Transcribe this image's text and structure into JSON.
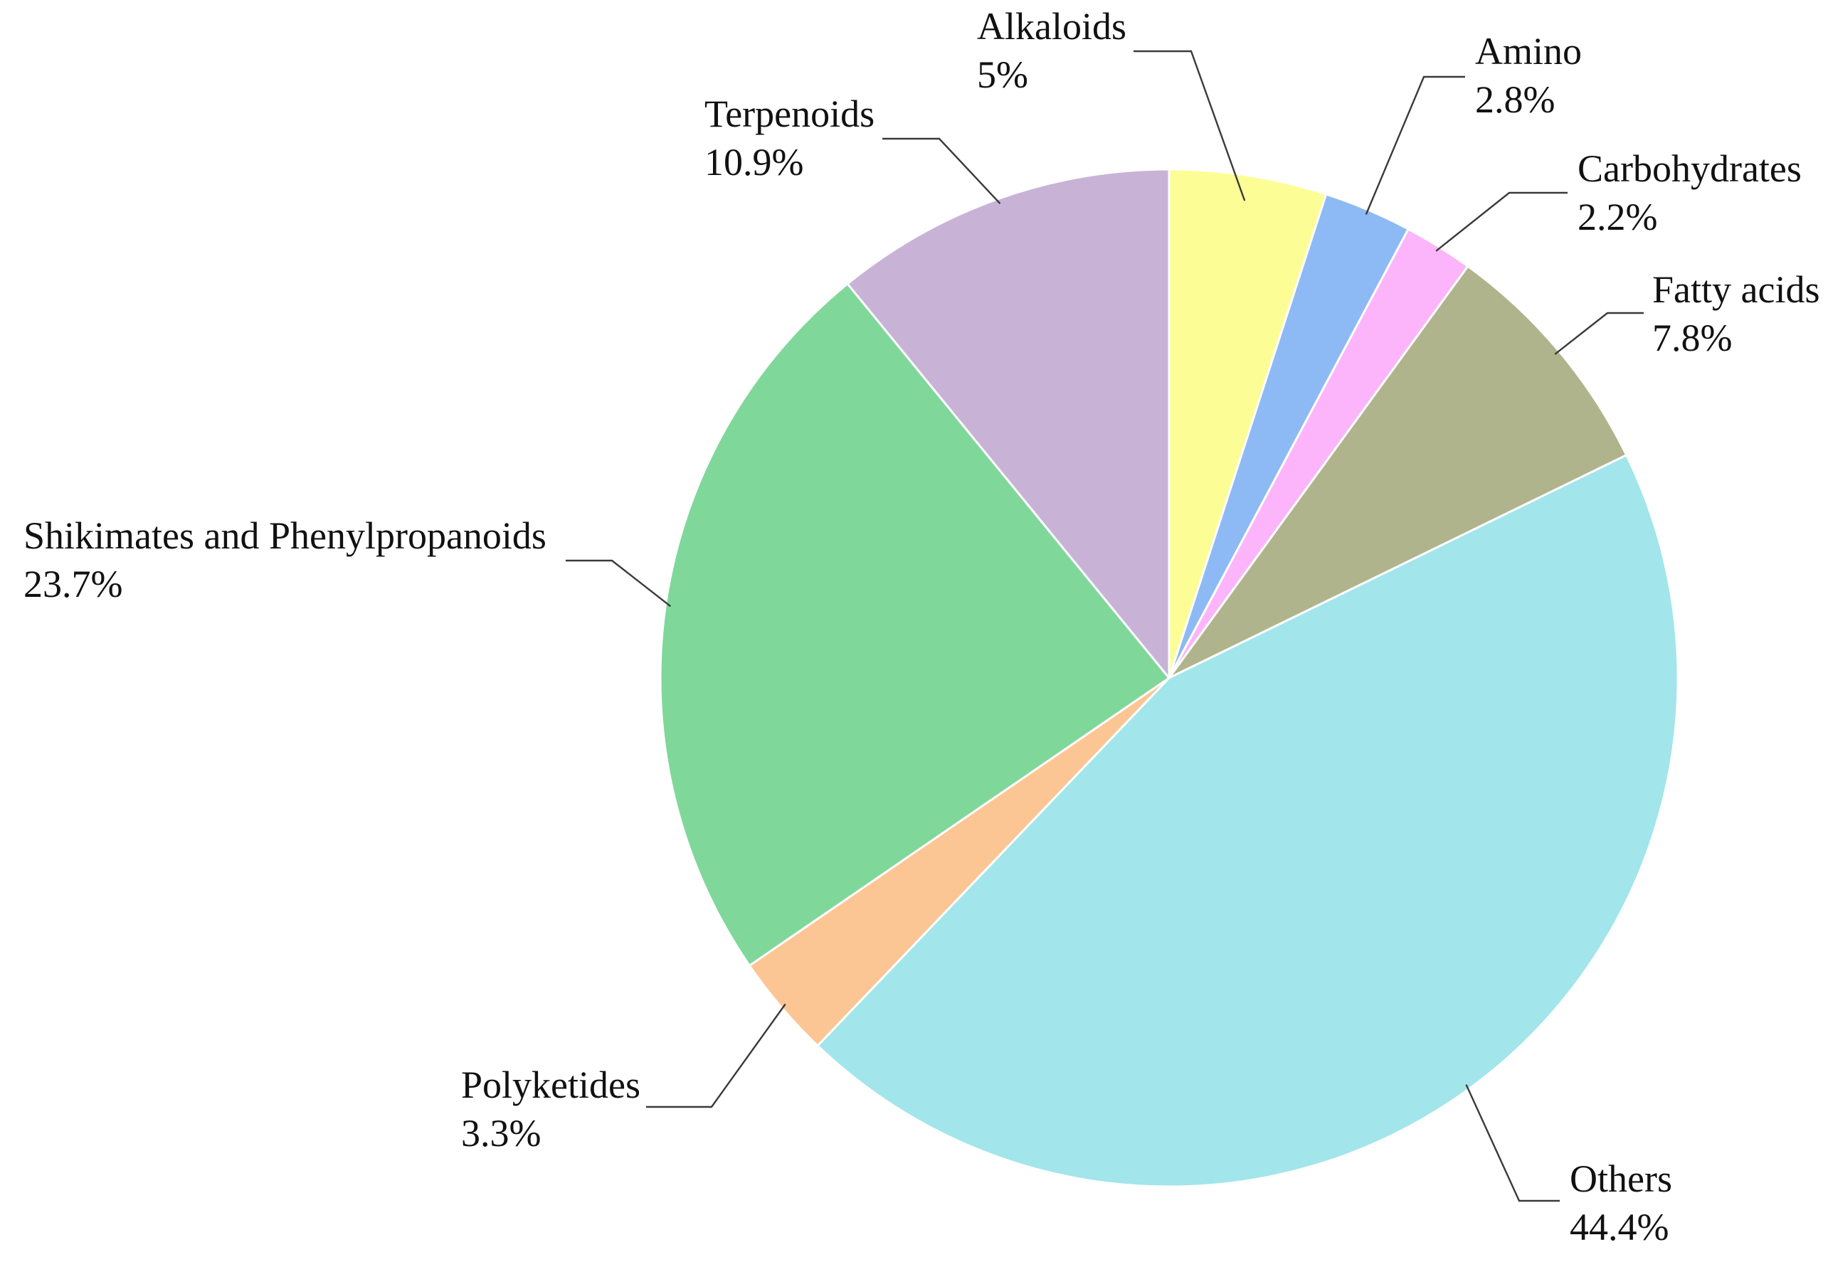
{
  "chart_data": {
    "type": "pie",
    "title": "",
    "start_angle_deg": 0,
    "direction": "clockwise",
    "slices": [
      {
        "name": "Alkaloids",
        "value": 5,
        "label": "5%",
        "color": "#fdfd96"
      },
      {
        "name": "Amino",
        "value": 2.8,
        "label": "2.8%",
        "color": "#8dbaf4"
      },
      {
        "name": "Carbohydrates",
        "value": 2.2,
        "label": "2.2%",
        "color": "#fcb5fa"
      },
      {
        "name": "Fatty acids",
        "value": 7.8,
        "label": "7.8%",
        "color": "#b0b48c"
      },
      {
        "name": "Others",
        "value": 44.4,
        "label": "44.4%",
        "color": "#a2e5eb"
      },
      {
        "name": "Polyketides",
        "value": 3.3,
        "label": "3.3%",
        "color": "#fcc594"
      },
      {
        "name": "Shikimates and Phenylpropanoids",
        "value": 23.7,
        "label": "23.7%",
        "color": "#80d79a"
      },
      {
        "name": "Terpenoids",
        "value": 10.9,
        "label": "10.9%",
        "color": "#c8b3d6"
      }
    ]
  }
}
